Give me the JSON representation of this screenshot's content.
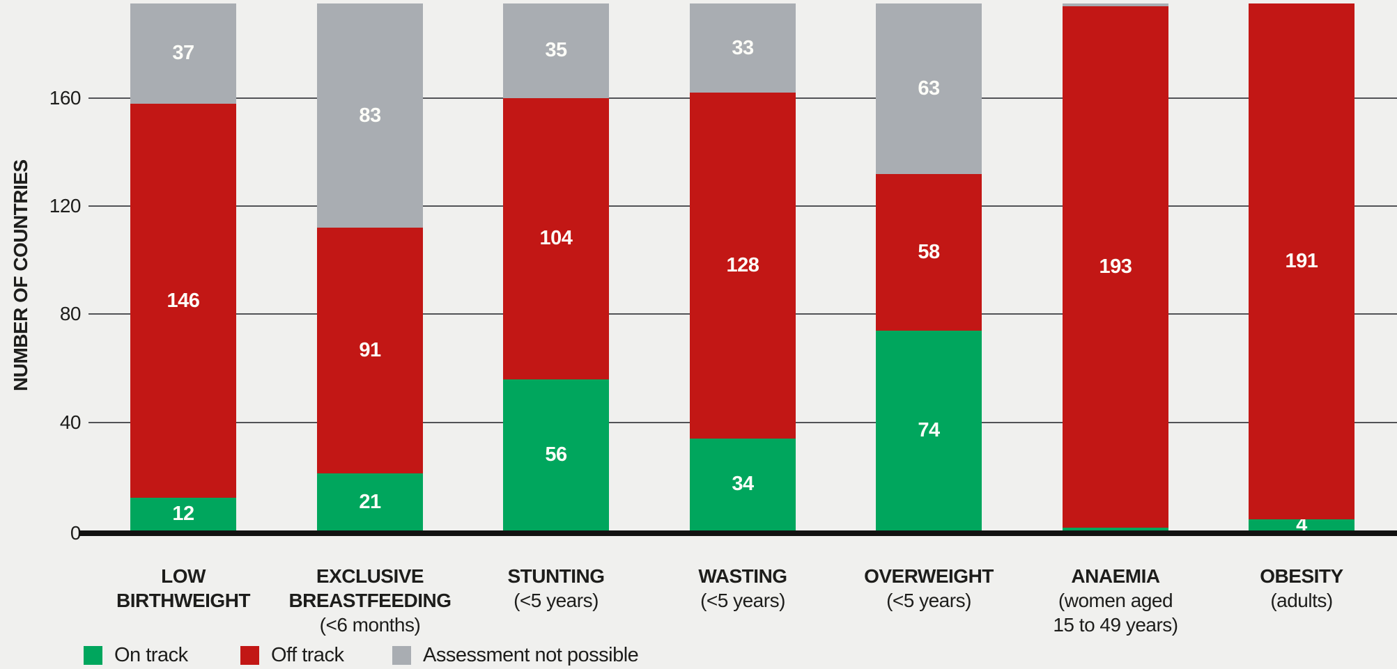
{
  "chart_data": {
    "type": "bar",
    "stacked": true,
    "title": "",
    "ylabel": "NUMBER OF COUNTRIES",
    "xlabel": "",
    "ylim": [
      0,
      196
    ],
    "ytick_values": [
      0,
      40,
      80,
      120,
      160
    ],
    "yticks": [
      "0",
      "40",
      "80",
      "120",
      "160"
    ],
    "grid": true,
    "legend_position": "bottom-left",
    "total_per_category": 195,
    "categories": [
      {
        "id": "low-birthweight",
        "bold_lines": [
          "LOW",
          "BIRTHWEIGHT"
        ],
        "sub_lines": []
      },
      {
        "id": "exclusive-breastfeeding",
        "bold_lines": [
          "EXCLUSIVE",
          "BREASTFEEDING"
        ],
        "sub_lines": [
          "(<6 months)"
        ]
      },
      {
        "id": "stunting",
        "bold_lines": [
          "STUNTING"
        ],
        "sub_lines": [
          "(<5 years)"
        ]
      },
      {
        "id": "wasting",
        "bold_lines": [
          "WASTING"
        ],
        "sub_lines": [
          "(<5 years)"
        ]
      },
      {
        "id": "overweight",
        "bold_lines": [
          "OVERWEIGHT"
        ],
        "sub_lines": [
          "(<5 years)"
        ]
      },
      {
        "id": "anaemia",
        "bold_lines": [
          "ANAEMIA"
        ],
        "sub_lines": [
          "(women aged",
          "15 to 49 years)"
        ]
      },
      {
        "id": "obesity",
        "bold_lines": [
          "OBESITY"
        ],
        "sub_lines": [
          "(adults)"
        ]
      }
    ],
    "series": [
      {
        "name": "On track",
        "color": "#00a65d",
        "values": [
          12,
          21,
          56,
          34,
          74,
          1,
          4
        ],
        "show_label": [
          true,
          true,
          true,
          true,
          true,
          false,
          true
        ]
      },
      {
        "name": "Off track",
        "color": "#c21715",
        "values": [
          146,
          91,
          104,
          128,
          58,
          193,
          191
        ],
        "show_label": [
          true,
          true,
          true,
          true,
          true,
          true,
          true
        ]
      },
      {
        "name": "Assessment not possible",
        "color": "#a9adb2",
        "values": [
          37,
          83,
          35,
          33,
          63,
          1,
          0
        ],
        "show_label": [
          true,
          true,
          true,
          true,
          true,
          false,
          false
        ]
      }
    ]
  },
  "colors": {
    "background": "#f0f0ee",
    "on_track": "#00a65d",
    "off_track": "#c21715",
    "assessment_not_possible": "#a9adb2",
    "gridline": "#515256",
    "axis": "#121211",
    "text": "#1d1d1b",
    "value_label": "#fdfdf8"
  }
}
